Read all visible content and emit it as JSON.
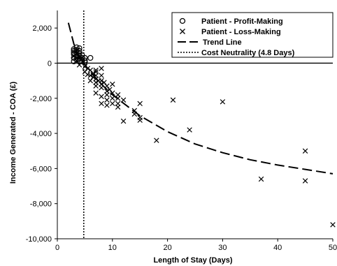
{
  "chart_data": {
    "type": "scatter",
    "title": "",
    "xlabel": "Length of Stay (Days)",
    "ylabel": "Income Generated - COA (£)",
    "xlim": [
      0,
      50
    ],
    "ylim": [
      -10000,
      3000
    ],
    "x_ticks": [
      0,
      10,
      20,
      30,
      40,
      50
    ],
    "y_ticks": [
      2000,
      0,
      -2000,
      -4000,
      -6000,
      -8000,
      -10000
    ],
    "x_tick_labels": [
      "0",
      "10",
      "20",
      "30",
      "40",
      "50"
    ],
    "y_tick_labels": [
      "2,000",
      "0",
      "-2,000",
      "-4,000",
      "-6,000",
      "-8,000",
      "-10,000"
    ],
    "grid": false,
    "legend_position": "top-right",
    "zero_line": true,
    "series": [
      {
        "name": "Patient - Profit-Making",
        "marker": "circle",
        "points": [
          [
            3,
            100
          ],
          [
            3,
            300
          ],
          [
            3,
            500
          ],
          [
            3,
            600
          ],
          [
            3,
            700
          ],
          [
            3,
            800
          ],
          [
            3.5,
            200
          ],
          [
            3.5,
            400
          ],
          [
            3.5,
            600
          ],
          [
            3.5,
            750
          ],
          [
            3.5,
            900
          ],
          [
            4,
            100
          ],
          [
            4,
            250
          ],
          [
            4,
            400
          ],
          [
            4,
            550
          ],
          [
            4,
            700
          ],
          [
            4,
            850
          ],
          [
            4.5,
            100
          ],
          [
            4.5,
            300
          ],
          [
            4.5,
            450
          ],
          [
            5,
            150
          ],
          [
            5,
            300
          ],
          [
            5,
            50
          ],
          [
            6,
            300
          ]
        ]
      },
      {
        "name": "Patient - Loss-Making",
        "marker": "x",
        "points": [
          [
            3,
            400
          ],
          [
            3.5,
            150
          ],
          [
            4,
            -100
          ],
          [
            4,
            350
          ],
          [
            5,
            -200
          ],
          [
            5,
            -500
          ],
          [
            5.5,
            -300
          ],
          [
            5.5,
            -650
          ],
          [
            6,
            -400
          ],
          [
            6,
            -700
          ],
          [
            6,
            -1000
          ],
          [
            6.5,
            -600
          ],
          [
            6.5,
            -800
          ],
          [
            7,
            -400
          ],
          [
            7,
            -500
          ],
          [
            7,
            -700
          ],
          [
            7,
            -900
          ],
          [
            7,
            -1100
          ],
          [
            7,
            -1300
          ],
          [
            7,
            -1700
          ],
          [
            7.5,
            -1000
          ],
          [
            8,
            -300
          ],
          [
            8,
            -700
          ],
          [
            8,
            -1000
          ],
          [
            8,
            -1200
          ],
          [
            8,
            -1400
          ],
          [
            8,
            -1900
          ],
          [
            8,
            -2300
          ],
          [
            8.5,
            -1100
          ],
          [
            9,
            -1300
          ],
          [
            9,
            -1600
          ],
          [
            9,
            -1800
          ],
          [
            9,
            -2100
          ],
          [
            9,
            -2400
          ],
          [
            9.5,
            -1500
          ],
          [
            10,
            -1200
          ],
          [
            10,
            -1700
          ],
          [
            10,
            -2000
          ],
          [
            10,
            -2300
          ],
          [
            11,
            -1800
          ],
          [
            11,
            -2000
          ],
          [
            11,
            -2300
          ],
          [
            11,
            -2500
          ],
          [
            12,
            -2100
          ],
          [
            12,
            -3300
          ],
          [
            14,
            -2700
          ],
          [
            14,
            -2900
          ],
          [
            15,
            -2300
          ],
          [
            15,
            -3100
          ],
          [
            15,
            -3250
          ],
          [
            18,
            -4400
          ],
          [
            21,
            -2100
          ],
          [
            24,
            -3800
          ],
          [
            30,
            -2200
          ],
          [
            37,
            -6600
          ],
          [
            45,
            -5000
          ],
          [
            45,
            -6700
          ],
          [
            50,
            -9200
          ]
        ]
      },
      {
        "name": "Trend Line",
        "style": "dashed",
        "curve": [
          [
            2,
            2300
          ],
          [
            3,
            1100
          ],
          [
            4,
            250
          ],
          [
            4.8,
            0
          ],
          [
            6,
            -500
          ],
          [
            8,
            -1200
          ],
          [
            10,
            -1800
          ],
          [
            15,
            -3000
          ],
          [
            20,
            -3900
          ],
          [
            25,
            -4600
          ],
          [
            30,
            -5100
          ],
          [
            35,
            -5500
          ],
          [
            40,
            -5800
          ],
          [
            45,
            -6050
          ],
          [
            50,
            -6300
          ]
        ]
      },
      {
        "name": "Cost Neutrality (4.8 Days)",
        "style": "dotted",
        "x": 4.8
      }
    ]
  }
}
